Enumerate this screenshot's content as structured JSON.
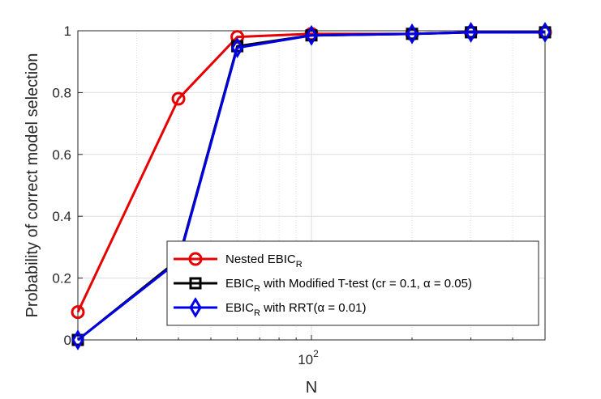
{
  "chart_data": {
    "type": "line",
    "xscale": "log",
    "x": [
      20,
      40,
      60,
      100,
      200,
      300,
      500
    ],
    "xlim": [
      20,
      500
    ],
    "ylim": [
      0,
      1
    ],
    "xlabel": "N",
    "ylabel": "Probability of correct model selection",
    "xticks": [
      {
        "value": 100,
        "base": "10",
        "exp": "2"
      }
    ],
    "yticks": [
      {
        "value": 0,
        "label": "0"
      },
      {
        "value": 0.2,
        "label": "0.2"
      },
      {
        "value": 0.4,
        "label": "0.4"
      },
      {
        "value": 0.6,
        "label": "0.6"
      },
      {
        "value": 0.8,
        "label": "0.8"
      },
      {
        "value": 1,
        "label": "1"
      }
    ],
    "grid": true,
    "legend_position": "bottom-right",
    "series": [
      {
        "name_main": "Nested EBIC",
        "name_sub": "R",
        "name_rest": "",
        "color": "#e60000",
        "marker": "circle",
        "values": [
          0.09,
          0.78,
          0.98,
          0.99,
          0.99,
          0.995,
          0.995
        ]
      },
      {
        "name_main": "EBIC",
        "name_sub": "R",
        "name_rest": " with Modified T-test (cr = 0.1, α = 0.05)",
        "color": "#000000",
        "marker": "square",
        "values": [
          0.0,
          0.26,
          0.95,
          0.985,
          0.99,
          0.995,
          0.995
        ]
      },
      {
        "name_main": "EBIC",
        "name_sub": "R",
        "name_rest": " with RRT(α = 0.01)",
        "color": "#0000e6",
        "marker": "diamond",
        "values": [
          0.0,
          0.255,
          0.945,
          0.985,
          0.99,
          0.995,
          0.995
        ]
      }
    ]
  }
}
